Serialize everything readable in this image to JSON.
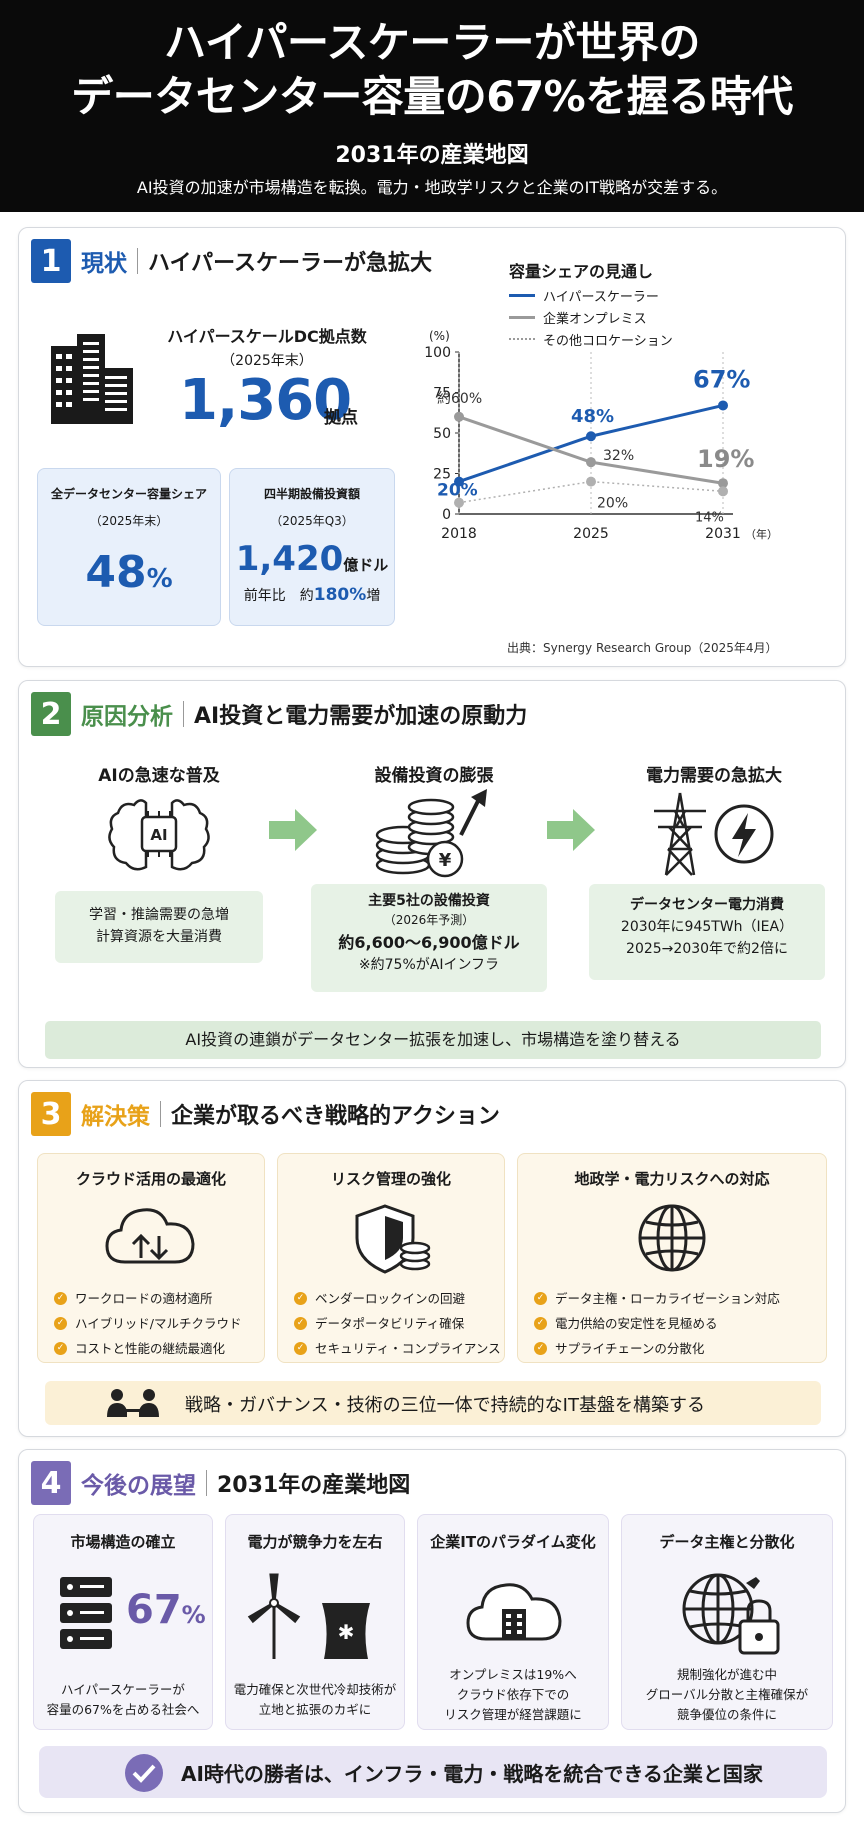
{
  "header": {
    "title_line1": "ハイパースケーラーが世界の",
    "title_line2": "データセンター容量の67%を握る時代",
    "subtitle": "2031年の産業地図",
    "description": "AI投資の加速が市場構造を転換。電力・地政学リスクと企業のIT戦略が交差する。"
  },
  "s1": {
    "num": "1",
    "key": "現状",
    "title": "ハイパースケーラーが急拡大",
    "dc_label": "ハイパースケールDC拠点数",
    "dc_year": "（2025年末）",
    "dc_value": "1,360",
    "dc_unit": "拠点",
    "share_card": {
      "label": "全データセンター容量シェア",
      "year": "（2025年末）",
      "value": "48",
      "unit": "%"
    },
    "capex_card": {
      "label": "四半期設備投資額",
      "year": "（2025年Q3）",
      "value": "1,420",
      "unit": "億ドル",
      "yoy_prefix": "前年比　約",
      "yoy_value": "180%",
      "yoy_suffix": "増"
    },
    "source": "出典：Synergy Research Group（2025年4月）"
  },
  "chart_data": {
    "type": "line",
    "title": "容量シェアの見通し",
    "ylabel": "(%)",
    "xlabel_unit": "（年）",
    "x": [
      "2018",
      "2025",
      "2031"
    ],
    "ylim": [
      0,
      100
    ],
    "yticks": [
      "0",
      "25",
      "50",
      "75",
      "100"
    ],
    "series": [
      {
        "name": "ハイパースケーラー",
        "values": [
          20,
          48,
          67
        ],
        "labels": [
          "20%",
          "48%",
          "67%"
        ],
        "color": "#1d5bb0"
      },
      {
        "name": "企業オンプレミス",
        "values": [
          60,
          32,
          19
        ],
        "labels": [
          "約60%",
          "32%",
          "19%"
        ],
        "color": "#9a9a9a"
      },
      {
        "name": "その他コロケーション",
        "values": [
          7,
          20,
          14
        ],
        "labels": [
          "",
          "20%",
          "14%"
        ],
        "color": "#b0b0b0"
      }
    ]
  },
  "s2": {
    "num": "2",
    "key": "原因分析",
    "title": "AI投資と電力需要が加速の原動力",
    "col1": {
      "title": "AIの急速な普及",
      "icon_text": "AI",
      "line1": "学習・推論需要の急増",
      "line2": "計算資源を大量消費"
    },
    "col2": {
      "title": "設備投資の膨張",
      "line1": "主要5社の設備投資",
      "line2": "（2026年予測）",
      "line3": "約6,600～6,900億ドル",
      "line4": "※約75%がAIインフラ",
      "coin_symbol": "¥"
    },
    "col3": {
      "title": "電力需要の急拡大",
      "line1": "データセンター電力消費",
      "line2": "2030年に945TWh（IEA）",
      "line3": "2025→2030年で約2倍に"
    },
    "banner": "AI投資の連鎖がデータセンター拡張を加速し、市場構造を塗り替える"
  },
  "s3": {
    "num": "3",
    "key": "解決策",
    "title": "企業が取るべき戦略的アクション",
    "cards": [
      {
        "title": "クラウド活用の最適化",
        "items": [
          "ワークロードの適材適所",
          "ハイブリッド/マルチクラウド",
          "コストと性能の継続最適化"
        ]
      },
      {
        "title": "リスク管理の強化",
        "items": [
          "ベンダーロックインの回避",
          "データポータビリティ確保",
          "セキュリティ・コンプライアンス"
        ]
      },
      {
        "title": "地政学・電力リスクへの対応",
        "items": [
          "データ主権・ローカライゼーション対応",
          "電力供給の安定性を見極める",
          "サプライチェーンの分散化"
        ]
      }
    ],
    "banner": "戦略・ガバナンス・技術の三位一体で持続的なIT基盤を構築する"
  },
  "s4": {
    "num": "4",
    "key": "今後の展望",
    "title": "2031年の産業地図",
    "cards": [
      {
        "title": "市場構造の確立",
        "value": "67",
        "unit": "%",
        "line1": "ハイパースケーラーが",
        "line2": "容量の67%を占める社会へ"
      },
      {
        "title": "電力が競争力を左右",
        "line1": "電力確保と次世代冷却技術が",
        "line2": "立地と拡張のカギに"
      },
      {
        "title": "企業ITのパラダイム変化",
        "line1": "オンプレミスは19%へ",
        "line2": "クラウド依存下での",
        "line3": "リスク管理が経営課題に"
      },
      {
        "title": "データ主権と分散化",
        "line1": "規制強化が進む中",
        "line2": "グローバル分散と主権確保が",
        "line3": "競争優位の条件に"
      }
    ],
    "banner": "AI時代の勝者は、インフラ・電力・戦略を統合できる企業と国家"
  }
}
